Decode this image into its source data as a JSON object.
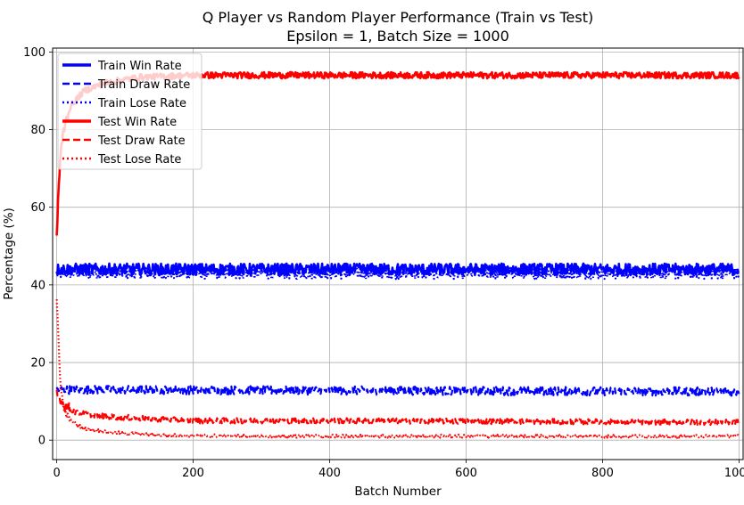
{
  "chart_data": {
    "type": "line",
    "title": "Q Player vs Random Player Performance (Train vs Test)",
    "subtitle": "Epsilon = 1, Batch Size = 1000",
    "xlabel": "Batch Number",
    "ylabel": "Percentage (%)",
    "xlim": [
      -6,
      1006
    ],
    "ylim": [
      -5,
      101
    ],
    "xticks": [
      0,
      200,
      400,
      600,
      800,
      1000
    ],
    "yticks": [
      0,
      20,
      40,
      60,
      80,
      100
    ],
    "xtick_labels": [
      "0",
      "200",
      "400",
      "600",
      "800",
      "1000"
    ],
    "ytick_labels": [
      "0",
      "20",
      "40",
      "60",
      "80",
      "100"
    ],
    "grid": true,
    "legend_position": "top-left",
    "series": [
      {
        "name": "Train Win Rate",
        "color": "#0000ff",
        "style": "solid",
        "points": [
          [
            0,
            44
          ],
          [
            1000,
            44
          ]
        ],
        "noise": 1.5
      },
      {
        "name": "Train Draw Rate",
        "color": "#0000ff",
        "style": "dashed",
        "points": [
          [
            0,
            13
          ],
          [
            1000,
            12.5
          ]
        ],
        "noise": 1.1
      },
      {
        "name": "Train Lose Rate",
        "color": "#0000ff",
        "style": "dotted",
        "points": [
          [
            0,
            43
          ],
          [
            1000,
            43
          ]
        ],
        "noise": 1.5
      },
      {
        "name": "Test Win Rate",
        "color": "#ff0000",
        "style": "solid",
        "points": [
          [
            0,
            52
          ],
          [
            2,
            62
          ],
          [
            5,
            72
          ],
          [
            10,
            80
          ],
          [
            20,
            86
          ],
          [
            40,
            90
          ],
          [
            70,
            92
          ],
          [
            120,
            93.5
          ],
          [
            200,
            94
          ],
          [
            1000,
            94
          ]
        ],
        "noise": 0.8
      },
      {
        "name": "Test Draw Rate",
        "color": "#ff0000",
        "style": "dashed",
        "points": [
          [
            0,
            12
          ],
          [
            10,
            9
          ],
          [
            30,
            7
          ],
          [
            80,
            6
          ],
          [
            200,
            5
          ],
          [
            400,
            5
          ],
          [
            1000,
            4.6
          ]
        ],
        "noise": 0.7
      },
      {
        "name": "Test Lose Rate",
        "color": "#ff0000",
        "style": "dotted",
        "points": [
          [
            0,
            36
          ],
          [
            2,
            28
          ],
          [
            5,
            16
          ],
          [
            10,
            8
          ],
          [
            20,
            5
          ],
          [
            40,
            3
          ],
          [
            80,
            2
          ],
          [
            150,
            1.3
          ],
          [
            300,
            1
          ],
          [
            1000,
            1
          ]
        ],
        "noise": 0.4
      }
    ]
  }
}
